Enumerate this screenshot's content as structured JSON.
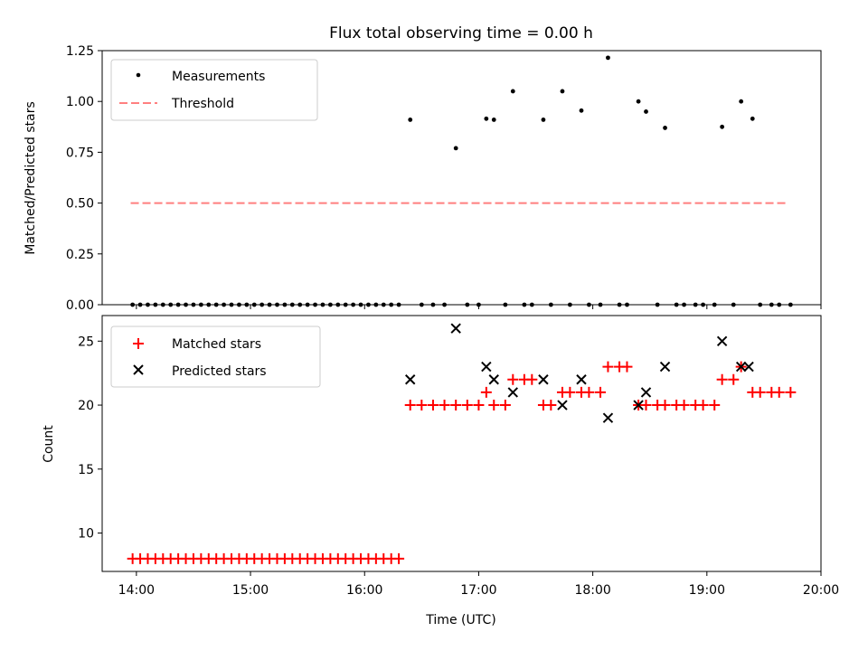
{
  "chart_data": {
    "type": "scatter",
    "title": "Flux total observing time = 0.00 h",
    "x_tick_labels": [
      "14:00",
      "15:00",
      "16:00",
      "17:00",
      "18:00",
      "19:00",
      "20:00"
    ],
    "xlabel": "Time (UTC)",
    "colors": {
      "measurement": "#000000",
      "threshold": "#ff7f7f",
      "matched": "#ff0000",
      "predicted": "#000000"
    },
    "panels": [
      {
        "ylabel": "Matched/Predicted stars",
        "ylim": [
          0,
          1.25
        ],
        "y_tick_labels": [
          "0.00",
          "0.25",
          "0.50",
          "0.75",
          "1.00",
          "1.25"
        ],
        "legend_position": "upper-left",
        "legend": [
          "Measurements",
          "Threshold"
        ],
        "threshold": {
          "name": "Threshold",
          "value": 0.5,
          "x_range": [
            "13:57",
            "19:43"
          ]
        },
        "measurements": {
          "name": "Measurements",
          "x": [
            "13:58",
            "14:02",
            "14:06",
            "14:10",
            "14:14",
            "14:18",
            "14:22",
            "14:26",
            "14:30",
            "14:34",
            "14:38",
            "14:42",
            "14:46",
            "14:50",
            "14:54",
            "14:58",
            "15:02",
            "15:06",
            "15:10",
            "15:14",
            "15:18",
            "15:22",
            "15:26",
            "15:30",
            "15:34",
            "15:38",
            "15:42",
            "15:46",
            "15:50",
            "15:54",
            "15:58",
            "16:02",
            "16:06",
            "16:10",
            "16:14",
            "16:18",
            "16:24",
            "16:30",
            "16:36",
            "16:42",
            "16:48",
            "16:54",
            "17:00",
            "17:04",
            "17:08",
            "17:14",
            "17:18",
            "17:24",
            "17:28",
            "17:34",
            "17:38",
            "17:44",
            "17:48",
            "17:54",
            "17:58",
            "18:04",
            "18:08",
            "18:14",
            "18:18",
            "18:24",
            "18:28",
            "18:34",
            "18:38",
            "18:44",
            "18:48",
            "18:54",
            "18:58",
            "19:04",
            "19:08",
            "19:14",
            "19:18",
            "19:24",
            "19:28",
            "19:34",
            "19:38",
            "19:44"
          ],
          "y": [
            0,
            0,
            0,
            0,
            0,
            0,
            0,
            0,
            0,
            0,
            0,
            0,
            0,
            0,
            0,
            0,
            0,
            0,
            0,
            0,
            0,
            0,
            0,
            0,
            0,
            0,
            0,
            0,
            0,
            0,
            0,
            0,
            0,
            0,
            0,
            0,
            0.91,
            0,
            0,
            0,
            0.77,
            0,
            0,
            0.915,
            0.91,
            0,
            1.05,
            0,
            0,
            0.91,
            0,
            1.05,
            0,
            0.955,
            0,
            0,
            1.215,
            0,
            0,
            1.0,
            0.95,
            0,
            0.87,
            0,
            0,
            0,
            0,
            0,
            0.875,
            0,
            1.0,
            0.915,
            0,
            0,
            0,
            0
          ]
        }
      },
      {
        "ylabel": "Count",
        "ylim": [
          7,
          27
        ],
        "y_tick_labels": [
          "10",
          "15",
          "20",
          "25"
        ],
        "legend_position": "upper-left",
        "legend": [
          "Matched stars",
          "Predicted stars"
        ],
        "matched": {
          "name": "Matched stars",
          "x": [
            "13:58",
            "14:02",
            "14:06",
            "14:10",
            "14:14",
            "14:18",
            "14:22",
            "14:26",
            "14:30",
            "14:34",
            "14:38",
            "14:42",
            "14:46",
            "14:50",
            "14:54",
            "14:58",
            "15:02",
            "15:06",
            "15:10",
            "15:14",
            "15:18",
            "15:22",
            "15:26",
            "15:30",
            "15:34",
            "15:38",
            "15:42",
            "15:46",
            "15:50",
            "15:54",
            "15:58",
            "16:02",
            "16:06",
            "16:10",
            "16:14",
            "16:18",
            "16:24",
            "16:30",
            "16:36",
            "16:42",
            "16:48",
            "16:54",
            "17:00",
            "17:04",
            "17:08",
            "17:14",
            "17:18",
            "17:24",
            "17:28",
            "17:34",
            "17:38",
            "17:44",
            "17:48",
            "17:54",
            "17:58",
            "18:04",
            "18:08",
            "18:14",
            "18:18",
            "18:24",
            "18:28",
            "18:34",
            "18:38",
            "18:44",
            "18:48",
            "18:54",
            "18:58",
            "19:04",
            "19:08",
            "19:14",
            "19:18",
            "19:24",
            "19:28",
            "19:34",
            "19:38",
            "19:44"
          ],
          "y": [
            8,
            8,
            8,
            8,
            8,
            8,
            8,
            8,
            8,
            8,
            8,
            8,
            8,
            8,
            8,
            8,
            8,
            8,
            8,
            8,
            8,
            8,
            8,
            8,
            8,
            8,
            8,
            8,
            8,
            8,
            8,
            8,
            8,
            8,
            8,
            8,
            20,
            20,
            20,
            20,
            20,
            20,
            20,
            21,
            20,
            20,
            22,
            22,
            22,
            20,
            20,
            21,
            21,
            21,
            21,
            21,
            23,
            23,
            23,
            20,
            20,
            20,
            20,
            20,
            20,
            20,
            20,
            20,
            22,
            22,
            23,
            21,
            21,
            21,
            21,
            21
          ]
        },
        "predicted": {
          "name": "Predicted stars",
          "x": [
            "16:24",
            "16:48",
            "17:04",
            "17:08",
            "17:18",
            "17:34",
            "17:44",
            "17:54",
            "18:08",
            "18:24",
            "18:28",
            "18:38",
            "19:08",
            "19:18",
            "19:22"
          ],
          "y": [
            22,
            26,
            23,
            22,
            21,
            22,
            20,
            22,
            19,
            20,
            21,
            23,
            25,
            23,
            23
          ]
        }
      }
    ]
  }
}
